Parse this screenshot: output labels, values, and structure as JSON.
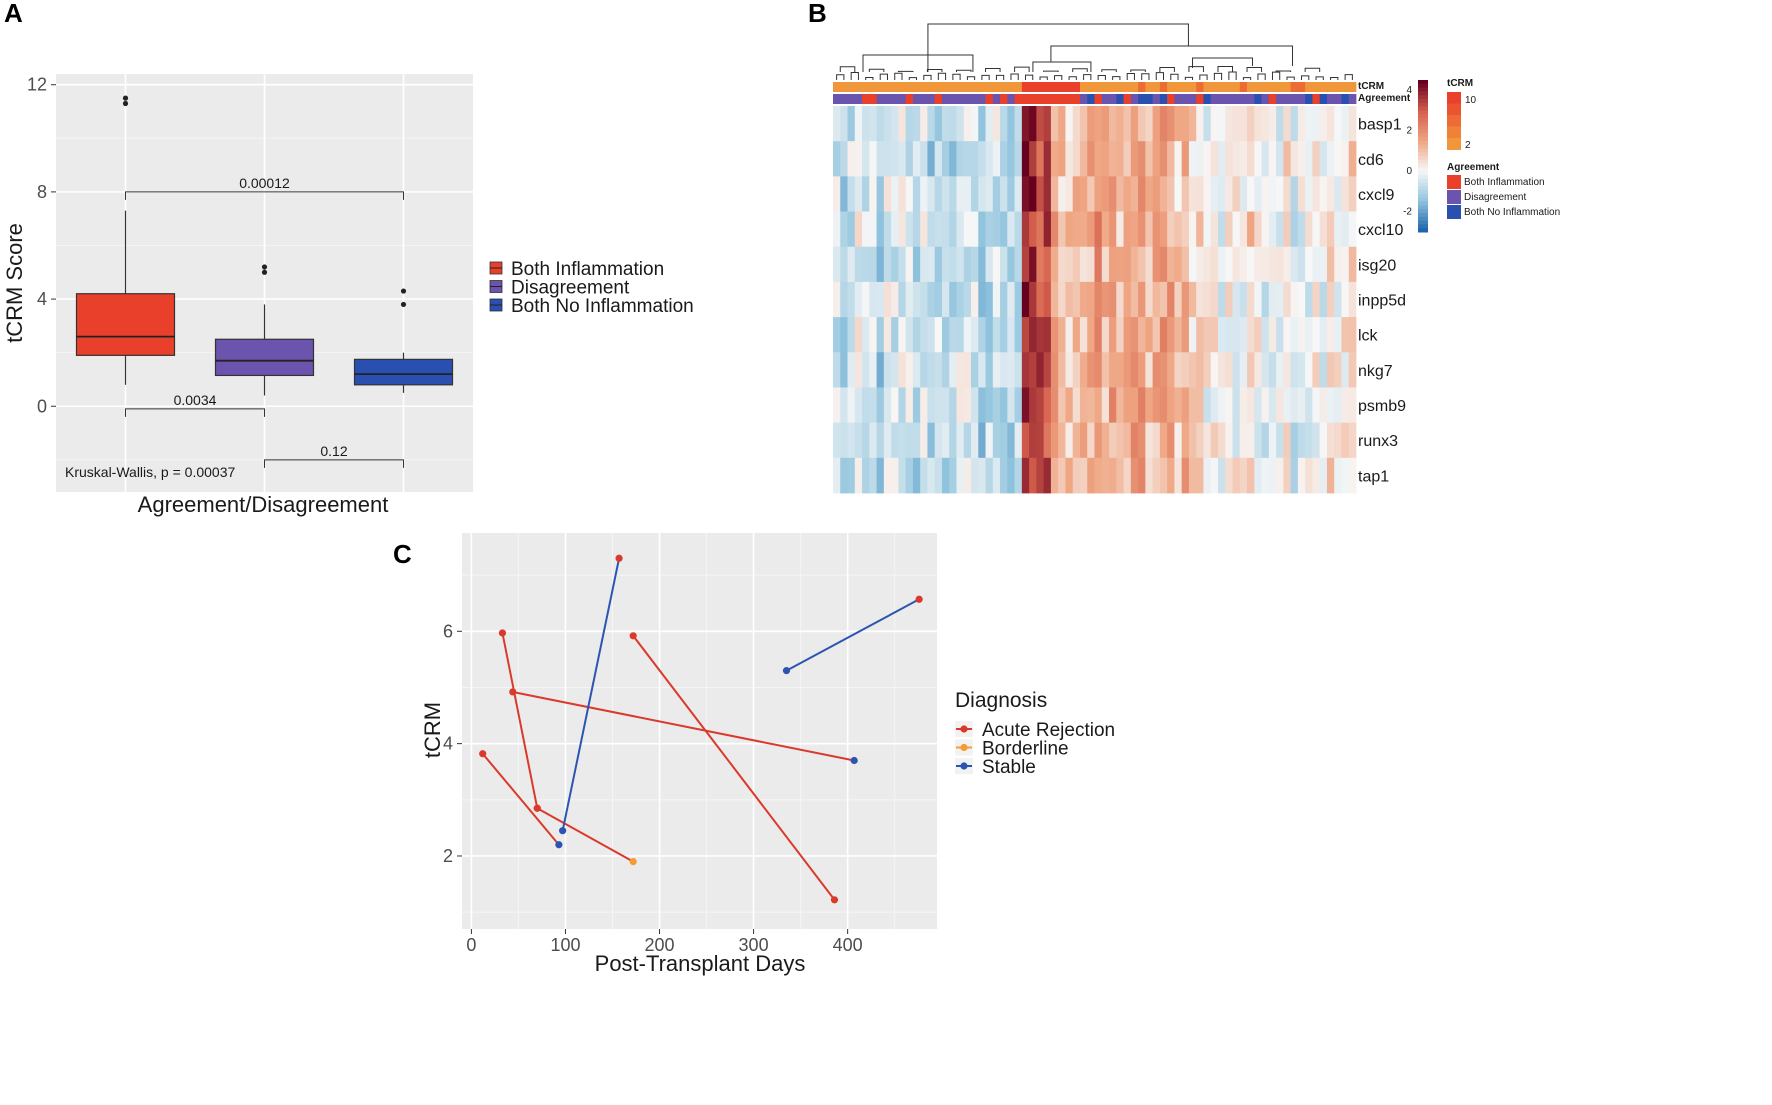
{
  "panels": {
    "a": "A",
    "b": "B",
    "c": "C"
  },
  "colors": {
    "both_inflammation": "#e8402a",
    "disagreement": "#6b54ad",
    "both_no_inflammation": "#2950b0",
    "acute_rejection": "#d93a2b",
    "borderline": "#f39c34",
    "stable": "#2c55b2",
    "tcrm_orange": "#f1973b",
    "tcrm_red": "#e8402a"
  },
  "chart_data": [
    {
      "panel": "A",
      "type": "box",
      "xlabel": "Agreement/Disagreement",
      "ylabel": "tCRM Score",
      "ylim": [
        -3.2,
        12.4
      ],
      "yticks": [
        0,
        4,
        8,
        12
      ],
      "legend": [
        "Both Inflammation",
        "Disagreement",
        "Both No Inflammation"
      ],
      "boxes": [
        {
          "name": "Both Inflammation",
          "whisker_low": 0.8,
          "q1": 1.9,
          "median": 2.6,
          "q3": 4.2,
          "whisker_high": 7.3,
          "outliers": [
            11.3,
            11.5
          ]
        },
        {
          "name": "Disagreement",
          "whisker_low": 0.4,
          "q1": 1.15,
          "median": 1.7,
          "q3": 2.5,
          "whisker_high": 3.8,
          "outliers": [
            5.0,
            5.2
          ]
        },
        {
          "name": "Both No Inflammation",
          "whisker_low": 0.5,
          "q1": 0.8,
          "median": 1.2,
          "q3": 1.75,
          "whisker_high": 2.0,
          "outliers": [
            3.8,
            4.3
          ]
        }
      ],
      "comparisons": [
        {
          "from": 0,
          "to": 2,
          "label": "0.00012",
          "y": 8.0
        },
        {
          "from": 0,
          "to": 1,
          "label": "0.0034",
          "y": -0.1
        },
        {
          "from": 1,
          "to": 2,
          "label": "0.12",
          "y": -2.0
        }
      ],
      "annotation": "Kruskal-Wallis, p = 0.00037"
    },
    {
      "panel": "B",
      "type": "heatmap",
      "genes": [
        "basp1",
        "cd6",
        "cxcl9",
        "cxcl10",
        "isg20",
        "inpp5d",
        "lck",
        "nkg7",
        "psmb9",
        "runx3",
        "tap1"
      ],
      "n_samples": 72,
      "annotation_rows": [
        "tCRM",
        "Agreement"
      ],
      "colorbar_ticks": [
        "4",
        "2",
        "0",
        "-2"
      ],
      "legend": {
        "tcrm_title": "tCRM",
        "tcrm_ticks": [
          "10",
          "2"
        ],
        "agreement_title": "Agreement",
        "agreement_items": [
          "Both Inflammation",
          "Disagreement",
          "Both No Inflammation"
        ]
      }
    },
    {
      "panel": "C",
      "type": "scatter-line",
      "xlabel": "Post-Transplant Days",
      "ylabel": "tCRM",
      "xlim": [
        -10,
        495
      ],
      "ylim": [
        0.7,
        7.75
      ],
      "xticks": [
        0,
        100,
        200,
        300,
        400
      ],
      "yticks": [
        2,
        4,
        6
      ],
      "legend_title": "Diagnosis",
      "legend": [
        "Acute Rejection",
        "Borderline",
        "Stable"
      ],
      "segments": [
        {
          "color": "acute_rejection",
          "points": [
            [
              12,
              3.82,
              "acute_rejection"
            ],
            [
              93,
              2.2,
              "stable"
            ]
          ]
        },
        {
          "color": "acute_rejection",
          "points": [
            [
              70,
              2.85,
              "acute_rejection"
            ],
            [
              172,
              1.9,
              "borderline"
            ]
          ]
        },
        {
          "color": "acute_rejection",
          "points": [
            [
              33,
              5.97,
              "acute_rejection"
            ],
            [
              70,
              2.85,
              "acute_rejection"
            ]
          ]
        },
        {
          "color": "acute_rejection",
          "points": [
            [
              44,
              4.92,
              "acute_rejection"
            ],
            [
              407,
              3.7,
              "stable"
            ]
          ]
        },
        {
          "color": "stable",
          "points": [
            [
              97,
              2.45,
              "stable"
            ],
            [
              157,
              7.3,
              "acute_rejection"
            ]
          ]
        },
        {
          "color": "acute_rejection",
          "points": [
            [
              172,
              5.92,
              "acute_rejection"
            ],
            [
              386,
              1.22,
              "acute_rejection"
            ]
          ]
        },
        {
          "color": "stable",
          "points": [
            [
              335,
              5.3,
              "stable"
            ],
            [
              476,
              6.57,
              "acute_rejection"
            ]
          ]
        }
      ]
    }
  ]
}
